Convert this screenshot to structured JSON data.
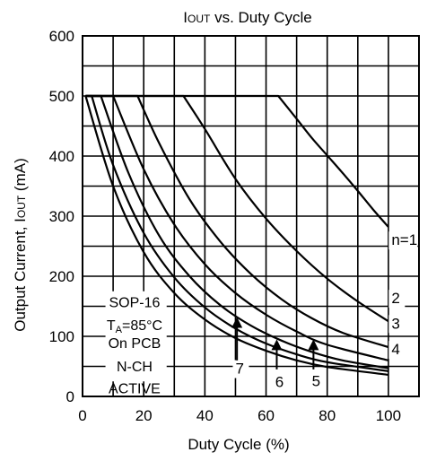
{
  "chart_data": {
    "type": "line",
    "title": "IOUT vs. Duty  Cycle",
    "title_parts": {
      "main": "I",
      "sub": "OUT",
      "rest": " vs. Duty  Cycle"
    },
    "xlabel": "Duty Cycle (%)",
    "ylabel_parts": {
      "main": "Output Current, I",
      "sub": "OUT",
      "rest": " (mA)"
    },
    "xlim": [
      0,
      110
    ],
    "ylim": [
      0,
      600
    ],
    "x_ticks": [
      0,
      20,
      40,
      60,
      80,
      100
    ],
    "y_ticks": [
      0,
      100,
      200,
      300,
      400,
      500,
      600
    ],
    "x_tick_labels": [
      "0",
      "20",
      "40",
      "60",
      "80",
      "100"
    ],
    "y_tick_labels": [
      "0",
      "100",
      "200",
      "300",
      "400",
      "500",
      "600"
    ],
    "grid": true,
    "series": [
      {
        "name": "n=1",
        "x": [
          64,
          70,
          75,
          80,
          85,
          90,
          95,
          100
        ],
        "y": [
          500,
          462,
          430,
          401,
          372,
          342,
          311,
          282
        ]
      },
      {
        "name": "2",
        "x": [
          33,
          40,
          50,
          60,
          70,
          80,
          90,
          100
        ],
        "y": [
          500,
          445,
          362,
          296,
          242,
          196,
          158,
          125
        ]
      },
      {
        "name": "3",
        "x": [
          18,
          25,
          35,
          45,
          55,
          65,
          75,
          85,
          100
        ],
        "y": [
          500,
          422,
          328,
          258,
          204,
          162,
          130,
          106,
          82
        ]
      },
      {
        "name": "4",
        "x": [
          10,
          20,
          30,
          40,
          50,
          60,
          70,
          80,
          100
        ],
        "y": [
          500,
          378,
          286,
          220,
          172,
          136,
          108,
          86,
          60
        ]
      },
      {
        "name": "5",
        "x": [
          6,
          15,
          25,
          35,
          45,
          55,
          65,
          75,
          85,
          100
        ],
        "y": [
          500,
          372,
          268,
          200,
          152,
          118,
          93,
          74,
          60,
          47
        ]
      },
      {
        "name": "6",
        "x": [
          3,
          10,
          20,
          30,
          40,
          50,
          60,
          70,
          80,
          100
        ],
        "y": [
          500,
          385,
          272,
          198,
          148,
          113,
          88,
          70,
          57,
          42
        ]
      },
      {
        "name": "7",
        "x": [
          1,
          10,
          20,
          30,
          40,
          50,
          60,
          70,
          80,
          100
        ],
        "y": [
          500,
          350,
          240,
          172,
          128,
          97,
          76,
          60,
          49,
          36
        ]
      }
    ],
    "series_labels": [
      {
        "text": "n=1",
        "x": 101,
        "y": 252
      },
      {
        "text": "2",
        "x": 101,
        "y": 155
      },
      {
        "text": "3",
        "x": 101,
        "y": 113
      },
      {
        "text": "4",
        "x": 101,
        "y": 70
      },
      {
        "text": "5",
        "x": 75,
        "y": 17
      },
      {
        "text": "6",
        "x": 63,
        "y": 16
      },
      {
        "text": "7",
        "x": 50,
        "y": 38
      }
    ],
    "arrows": [
      {
        "target": "7",
        "x": 50.5,
        "y_from": 60,
        "y_to": 132
      },
      {
        "target": "6",
        "x": 63.5,
        "y_from": 45,
        "y_to": 95
      },
      {
        "target": "5",
        "x": 75.5,
        "y_from": 45,
        "y_to": 95
      }
    ],
    "annotation": {
      "lines": [
        "SOP-16",
        "TA=85°C",
        "On PCB",
        "N-CH",
        "ACTIVE"
      ],
      "ta_parts": {
        "main": "T",
        "sub": "A",
        "rest": "=85°C"
      }
    }
  }
}
